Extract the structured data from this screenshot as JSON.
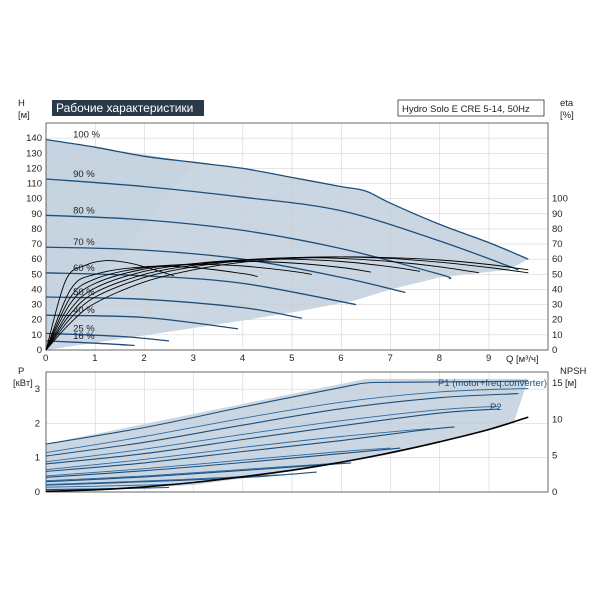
{
  "title": "Рабочие характеристики",
  "model": "Hydro Solo E CRE 5-14, 50Hz",
  "colors": {
    "curve": "#1f4e79",
    "area": "#b8c9da",
    "title_bg": "#2b3a4a",
    "title_fg": "#ffffff",
    "black": "#000000",
    "grid": "#cccccc"
  },
  "chart_data": [
    {
      "type": "line",
      "ylabel": "H\n[м]",
      "ylabel_right": "eta\n[%]",
      "xlabel": "Q [м³/ч]",
      "xlim": [
        0,
        10.2
      ],
      "ylim": [
        0,
        150
      ],
      "xticks": [
        0,
        1,
        2,
        3,
        4,
        5,
        6,
        7,
        8,
        9
      ],
      "yticks": [
        0,
        10,
        20,
        30,
        40,
        50,
        60,
        70,
        80,
        90,
        100,
        110,
        120,
        130,
        140
      ],
      "yticks_right": [
        0,
        10,
        20,
        30,
        40,
        50,
        60,
        70,
        80,
        90,
        100
      ],
      "speed_labels": [
        "100 %",
        "90 %",
        "80 %",
        "70 %",
        "60 %",
        "50 %",
        "40 %",
        "25 %",
        "16 %"
      ],
      "head_series": [
        {
          "speed": 100,
          "x": [
            0,
            1,
            2,
            3,
            4,
            5,
            6,
            6.5,
            7,
            8,
            9,
            9.8
          ],
          "y": [
            139,
            134,
            128,
            124,
            120,
            114,
            108,
            105,
            97,
            83,
            71,
            60
          ]
        },
        {
          "speed": 90,
          "x": [
            0,
            2,
            4,
            6,
            8,
            9.6
          ],
          "y": [
            113,
            108,
            101,
            92,
            72,
            53
          ]
        },
        {
          "speed": 80,
          "x": [
            0,
            2,
            4,
            6,
            8,
            8.2
          ],
          "y": [
            89,
            86,
            79,
            67,
            50,
            47
          ]
        },
        {
          "speed": 70,
          "x": [
            0,
            2,
            4,
            6,
            7.3
          ],
          "y": [
            68,
            66,
            60,
            48,
            38
          ]
        },
        {
          "speed": 60,
          "x": [
            0,
            2,
            4,
            6.3
          ],
          "y": [
            51,
            49,
            44,
            30
          ]
        },
        {
          "speed": 50,
          "x": [
            0,
            2,
            4,
            5.2
          ],
          "y": [
            35,
            33.5,
            28,
            21
          ]
        },
        {
          "speed": 40,
          "x": [
            0,
            2,
            3.9
          ],
          "y": [
            23,
            21.5,
            14
          ]
        },
        {
          "speed": 25,
          "x": [
            0,
            1.5,
            2.5
          ],
          "y": [
            11,
            9,
            6
          ]
        },
        {
          "speed": 16,
          "x": [
            0,
            1,
            1.8
          ],
          "y": [
            6,
            4.5,
            3
          ]
        }
      ],
      "efficiency_series": [
        {
          "speed": 100,
          "x": [
            0,
            0.5,
            1,
            2,
            3,
            4,
            5,
            6,
            7,
            8,
            9,
            9.8
          ],
          "y": [
            0,
            18,
            31,
            45,
            53,
            58,
            60.5,
            61.5,
            61,
            59.5,
            56.5,
            53
          ]
        },
        {
          "speed": 90,
          "x": [
            0,
            0.5,
            1,
            2,
            3,
            4,
            5,
            6,
            7,
            8,
            9,
            9.8
          ],
          "y": [
            0,
            21,
            35,
            48,
            55,
            59,
            61,
            61.5,
            60.5,
            58,
            54.5,
            51
          ]
        },
        {
          "speed": 80,
          "x": [
            0,
            0.5,
            1,
            2,
            3,
            4,
            5,
            6,
            7,
            8,
            8.8
          ],
          "y": [
            0,
            24,
            38,
            50,
            56,
            59.5,
            61,
            60.5,
            58.5,
            55,
            51
          ]
        },
        {
          "speed": 70,
          "x": [
            0,
            0.5,
            1,
            2,
            3,
            4,
            5,
            6,
            7,
            7.6
          ],
          "y": [
            0,
            27,
            41,
            52,
            57,
            59.5,
            60,
            58.5,
            55,
            52
          ]
        },
        {
          "speed": 60,
          "x": [
            0,
            0.5,
            1,
            2,
            3,
            4,
            5,
            6,
            6.6
          ],
          "y": [
            0,
            31,
            44,
            53.5,
            57,
            58.5,
            57.5,
            54.5,
            51.5
          ]
        },
        {
          "speed": 50,
          "x": [
            0,
            0.5,
            1,
            2,
            3,
            4,
            5,
            5.4
          ],
          "y": [
            0,
            35,
            47,
            54.5,
            56.5,
            55.5,
            52,
            50
          ]
        },
        {
          "speed": 40,
          "x": [
            0,
            0.5,
            1,
            2,
            3,
            4,
            4.3
          ],
          "y": [
            0,
            40,
            50,
            55,
            54.5,
            50.5,
            48.5
          ]
        },
        {
          "speed": 25,
          "x": [
            0,
            0.4,
            0.8,
            1.2,
            1.6,
            2,
            2.6
          ],
          "y": [
            0,
            46,
            56,
            59,
            58,
            55,
            49
          ]
        }
      ],
      "operating_area": {
        "x": [
          0,
          3,
          4,
          5,
          6,
          6.5,
          7,
          8,
          9,
          9.8,
          9.4,
          8,
          7,
          6.3,
          5.2,
          4.1,
          2.7,
          0
        ],
        "y": [
          139,
          124,
          120,
          114,
          108,
          105,
          97,
          83,
          71,
          60,
          53,
          48,
          40,
          33,
          26,
          20,
          13,
          0
        ]
      }
    },
    {
      "type": "line",
      "ylabel": "P\n[кВт]",
      "ylabel_right": "NPSH\n[м]",
      "xlim": [
        0,
        10.2
      ],
      "ylim": [
        0,
        3.5
      ],
      "yticks": [
        0,
        1,
        2,
        3
      ],
      "yticks_right": [
        0,
        5,
        10,
        15
      ],
      "legend": [
        "P1 (motor+freq.converter)",
        "P2"
      ],
      "p1_series": [
        {
          "speed": 100,
          "x": [
            0,
            2,
            4,
            6,
            6.5,
            7,
            8,
            9,
            9.8
          ],
          "y": [
            1.4,
            1.88,
            2.48,
            3.05,
            3.18,
            3.2,
            3.21,
            3.22,
            3.24
          ]
        },
        {
          "speed": 90,
          "x": [
            0,
            2,
            4,
            6,
            8,
            9.6
          ],
          "y": [
            1.05,
            1.45,
            1.95,
            2.43,
            2.75,
            2.87
          ]
        },
        {
          "speed": 80,
          "x": [
            0,
            2,
            4,
            6,
            8,
            9.2
          ],
          "y": [
            0.82,
            1.12,
            1.53,
            1.93,
            2.3,
            2.42
          ]
        },
        {
          "speed": 70,
          "x": [
            0,
            2,
            4,
            6,
            7.5,
            8.3
          ],
          "y": [
            0.6,
            0.85,
            1.18,
            1.5,
            1.78,
            1.9
          ]
        },
        {
          "speed": 60,
          "x": [
            0,
            2,
            4,
            6,
            7.2
          ],
          "y": [
            0.43,
            0.62,
            0.86,
            1.12,
            1.28
          ]
        },
        {
          "speed": 50,
          "x": [
            0,
            2,
            4,
            6.2
          ],
          "y": [
            0.3,
            0.44,
            0.63,
            0.85
          ]
        },
        {
          "speed": 40,
          "x": [
            0,
            2,
            4,
            5.5
          ],
          "y": [
            0.2,
            0.3,
            0.42,
            0.58
          ]
        },
        {
          "speed": 25,
          "x": [
            0,
            1.5,
            2.5
          ],
          "y": [
            0.07,
            0.1,
            0.13
          ]
        }
      ],
      "p2_series": [
        {
          "speed": 100,
          "x": [
            0,
            2,
            4,
            6,
            8,
            9.8
          ],
          "y": [
            1.15,
            1.62,
            2.15,
            2.62,
            2.92,
            3.02
          ]
        },
        {
          "speed": 90,
          "x": [
            0,
            2,
            4,
            6,
            8,
            9.2
          ],
          "y": [
            0.88,
            1.25,
            1.68,
            2.08,
            2.4,
            2.5
          ]
        },
        {
          "speed": 80,
          "x": [
            0,
            2,
            4,
            6,
            7.8
          ],
          "y": [
            0.65,
            0.95,
            1.3,
            1.62,
            1.85
          ]
        },
        {
          "speed": 70,
          "x": [
            0,
            2,
            4,
            6,
            7
          ],
          "y": [
            0.47,
            0.68,
            0.93,
            1.18,
            1.28
          ]
        },
        {
          "speed": 60,
          "x": [
            0,
            2,
            4,
            6
          ],
          "y": [
            0.33,
            0.47,
            0.66,
            0.85
          ]
        },
        {
          "speed": 50,
          "x": [
            0,
            2,
            4,
            5
          ],
          "y": [
            0.22,
            0.32,
            0.45,
            0.52
          ]
        },
        {
          "speed": 40,
          "x": [
            0,
            2,
            2.6
          ],
          "y": [
            0.14,
            0.2,
            0.23
          ]
        }
      ],
      "npsh_series": {
        "x": [
          0,
          1,
          2,
          3,
          4,
          5,
          6,
          7,
          8,
          9,
          9.8
        ],
        "y": [
          0.1,
          0.3,
          0.7,
          1.3,
          2.1,
          3.0,
          4.1,
          5.4,
          6.9,
          8.6,
          10.3
        ]
      },
      "operating_area": {
        "x": [
          0,
          6.5,
          9.8,
          9.5,
          7,
          5,
          3,
          0
        ],
        "y": [
          1.4,
          3.3,
          3.3,
          2.0,
          1.1,
          0.6,
          0.2,
          0
        ]
      }
    }
  ]
}
